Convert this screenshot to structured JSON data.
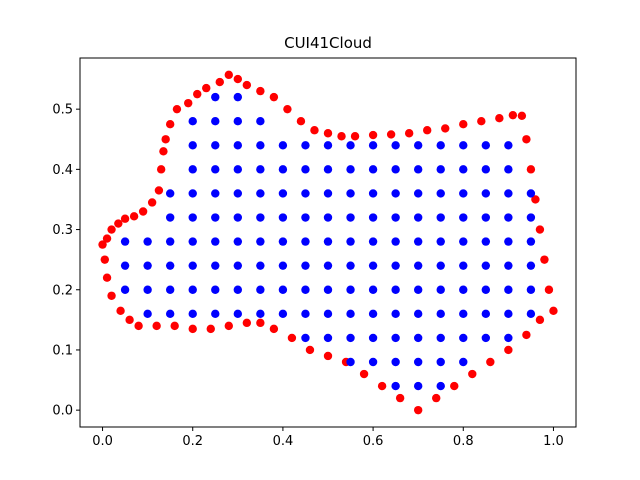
{
  "chart_data": {
    "type": "scatter",
    "title": "CUI41Cloud",
    "xlim": [
      -0.05,
      1.05
    ],
    "ylim": [
      -0.028,
      0.585
    ],
    "xticks": [
      {
        "value": 0,
        "label": "0.0"
      },
      0.2,
      0.4,
      0.6,
      0.8,
      {
        "value": 1,
        "label": "1.0"
      }
    ],
    "yticks": [
      {
        "value": 0,
        "label": "0.0"
      },
      0.1,
      0.2,
      0.3,
      0.4,
      0.5
    ],
    "series": [
      {
        "color": "#ff0000",
        "x": [
          0,
          0.01,
          0.02,
          0.035,
          0.05,
          0.07,
          0.09,
          0.11,
          0.125,
          0.13,
          0.135,
          0.14,
          0.15,
          0.165,
          0.19,
          0.21,
          0.23,
          0.26,
          0.28,
          0.3,
          0.32,
          0.35,
          0.38,
          0.41,
          0.44,
          0.47,
          0.5,
          0.53,
          0.56,
          0.6,
          0.64,
          0.68,
          0.72,
          0.76,
          0.8,
          0.84,
          0.88,
          0.91,
          0.93,
          0.94,
          0.95,
          0.96,
          0.97,
          0.98,
          0.99,
          1.0,
          0.97,
          0.94,
          0.9,
          0.86,
          0.82,
          0.78,
          0.74,
          0.7,
          0.66,
          0.62,
          0.58,
          0.54,
          0.5,
          0.46,
          0.42,
          0.38,
          0.35,
          0.32,
          0.28,
          0.24,
          0.2,
          0.16,
          0.12,
          0.08,
          0.06,
          0.04,
          0.02,
          0.01,
          0.005
        ],
        "values": [
          0.275,
          0.285,
          0.3,
          0.31,
          0.318,
          0.322,
          0.33,
          0.345,
          0.365,
          0.4,
          0.43,
          0.45,
          0.475,
          0.5,
          0.51,
          0.525,
          0.535,
          0.545,
          0.557,
          0.55,
          0.54,
          0.53,
          0.52,
          0.5,
          0.48,
          0.465,
          0.46,
          0.455,
          0.455,
          0.457,
          0.458,
          0.46,
          0.465,
          0.468,
          0.475,
          0.48,
          0.485,
          0.49,
          0.489,
          0.45,
          0.4,
          0.35,
          0.3,
          0.25,
          0.2,
          0.165,
          0.15,
          0.125,
          0.1,
          0.08,
          0.06,
          0.04,
          0.02,
          0,
          0.02,
          0.04,
          0.06,
          0.08,
          0.09,
          0.1,
          0.12,
          0.135,
          0.145,
          0.145,
          0.14,
          0.135,
          0.135,
          0.14,
          0.14,
          0.14,
          0.15,
          0.165,
          0.19,
          0.22,
          0.25
        ]
      },
      {
        "color": "#0000ff",
        "x": [
          0.65,
          0.7,
          0.75,
          0.55,
          0.6,
          0.65,
          0.7,
          0.75,
          0.8,
          0.45,
          0.5,
          0.55,
          0.6,
          0.65,
          0.7,
          0.75,
          0.8,
          0.85,
          0.9,
          0.1,
          0.15,
          0.2,
          0.25,
          0.3,
          0.35,
          0.4,
          0.45,
          0.5,
          0.55,
          0.6,
          0.65,
          0.7,
          0.75,
          0.8,
          0.85,
          0.9,
          0.95,
          0.05,
          0.1,
          0.15,
          0.2,
          0.25,
          0.3,
          0.35,
          0.4,
          0.45,
          0.5,
          0.55,
          0.6,
          0.65,
          0.7,
          0.75,
          0.8,
          0.85,
          0.9,
          0.95,
          0.05,
          0.1,
          0.15,
          0.2,
          0.25,
          0.3,
          0.35,
          0.4,
          0.45,
          0.5,
          0.55,
          0.6,
          0.65,
          0.7,
          0.75,
          0.8,
          0.85,
          0.9,
          0.95,
          0.05,
          0.1,
          0.15,
          0.2,
          0.25,
          0.3,
          0.35,
          0.4,
          0.45,
          0.5,
          0.55,
          0.6,
          0.65,
          0.7,
          0.75,
          0.8,
          0.85,
          0.9,
          0.95,
          0.15,
          0.2,
          0.25,
          0.3,
          0.35,
          0.4,
          0.45,
          0.5,
          0.55,
          0.6,
          0.65,
          0.7,
          0.75,
          0.8,
          0.85,
          0.9,
          0.95,
          0.15,
          0.2,
          0.25,
          0.3,
          0.35,
          0.4,
          0.45,
          0.5,
          0.55,
          0.6,
          0.65,
          0.7,
          0.75,
          0.8,
          0.85,
          0.9,
          0.95,
          0.2,
          0.25,
          0.3,
          0.35,
          0.4,
          0.45,
          0.5,
          0.55,
          0.6,
          0.65,
          0.7,
          0.75,
          0.8,
          0.85,
          0.9,
          0.2,
          0.25,
          0.3,
          0.35,
          0.4,
          0.45,
          0.5,
          0.55,
          0.6,
          0.65,
          0.7,
          0.75,
          0.8,
          0.85,
          0.9,
          0.2,
          0.25,
          0.3,
          0.35,
          0.25,
          0.3
        ],
        "values": [
          0.04,
          0.04,
          0.04,
          0.08,
          0.08,
          0.08,
          0.08,
          0.08,
          0.08,
          0.12,
          0.12,
          0.12,
          0.12,
          0.12,
          0.12,
          0.12,
          0.12,
          0.12,
          0.12,
          0.16,
          0.16,
          0.16,
          0.16,
          0.16,
          0.16,
          0.16,
          0.16,
          0.16,
          0.16,
          0.16,
          0.16,
          0.16,
          0.16,
          0.16,
          0.16,
          0.16,
          0.16,
          0.2,
          0.2,
          0.2,
          0.2,
          0.2,
          0.2,
          0.2,
          0.2,
          0.2,
          0.2,
          0.2,
          0.2,
          0.2,
          0.2,
          0.2,
          0.2,
          0.2,
          0.2,
          0.2,
          0.24,
          0.24,
          0.24,
          0.24,
          0.24,
          0.24,
          0.24,
          0.24,
          0.24,
          0.24,
          0.24,
          0.24,
          0.24,
          0.24,
          0.24,
          0.24,
          0.24,
          0.24,
          0.24,
          0.28,
          0.28,
          0.28,
          0.28,
          0.28,
          0.28,
          0.28,
          0.28,
          0.28,
          0.28,
          0.28,
          0.28,
          0.28,
          0.28,
          0.28,
          0.28,
          0.28,
          0.28,
          0.28,
          0.32,
          0.32,
          0.32,
          0.32,
          0.32,
          0.32,
          0.32,
          0.32,
          0.32,
          0.32,
          0.32,
          0.32,
          0.32,
          0.32,
          0.32,
          0.32,
          0.32,
          0.36,
          0.36,
          0.36,
          0.36,
          0.36,
          0.36,
          0.36,
          0.36,
          0.36,
          0.36,
          0.36,
          0.36,
          0.36,
          0.36,
          0.36,
          0.36,
          0.36,
          0.4,
          0.4,
          0.4,
          0.4,
          0.4,
          0.4,
          0.4,
          0.4,
          0.4,
          0.4,
          0.4,
          0.4,
          0.4,
          0.4,
          0.4,
          0.44,
          0.44,
          0.44,
          0.44,
          0.44,
          0.44,
          0.44,
          0.44,
          0.44,
          0.44,
          0.44,
          0.44,
          0.44,
          0.44,
          0.44,
          0.48,
          0.48,
          0.48,
          0.48,
          0.52,
          0.52
        ]
      }
    ]
  }
}
